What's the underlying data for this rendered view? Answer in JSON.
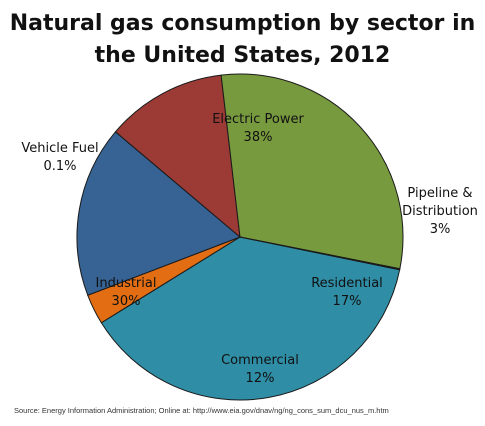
{
  "chart_data": {
    "type": "pie",
    "title_lines": [
      "Natural gas consumption  by sector in",
      "the United States, 2012"
    ],
    "slices": [
      {
        "label": "Electric Power",
        "value_label": "38%",
        "value": 38,
        "color": "#2f8ea6"
      },
      {
        "label": "Pipeline & Distribution",
        "label_lines": [
          "Pipeline &",
          "Distribution"
        ],
        "value_label": "3%",
        "value": 3,
        "color": "#e26d12"
      },
      {
        "label": "Residential",
        "value_label": "17%",
        "value": 17,
        "color": "#366394"
      },
      {
        "label": "Commercial",
        "value_label": "12%",
        "value": 12,
        "color": "#9c3a35"
      },
      {
        "label": "Industrial",
        "value_label": "30%",
        "value": 30,
        "color": "#789a3e"
      },
      {
        "label": "Vehicle Fuel",
        "value_label": "0.1%",
        "value": 0.1,
        "color": "#5a4a7a"
      }
    ],
    "source": "Source: Energy Information Administration; Online at: http://www.eia.gov/dnav/ng/ng_cons_sum_dcu_nus_m.htm"
  }
}
